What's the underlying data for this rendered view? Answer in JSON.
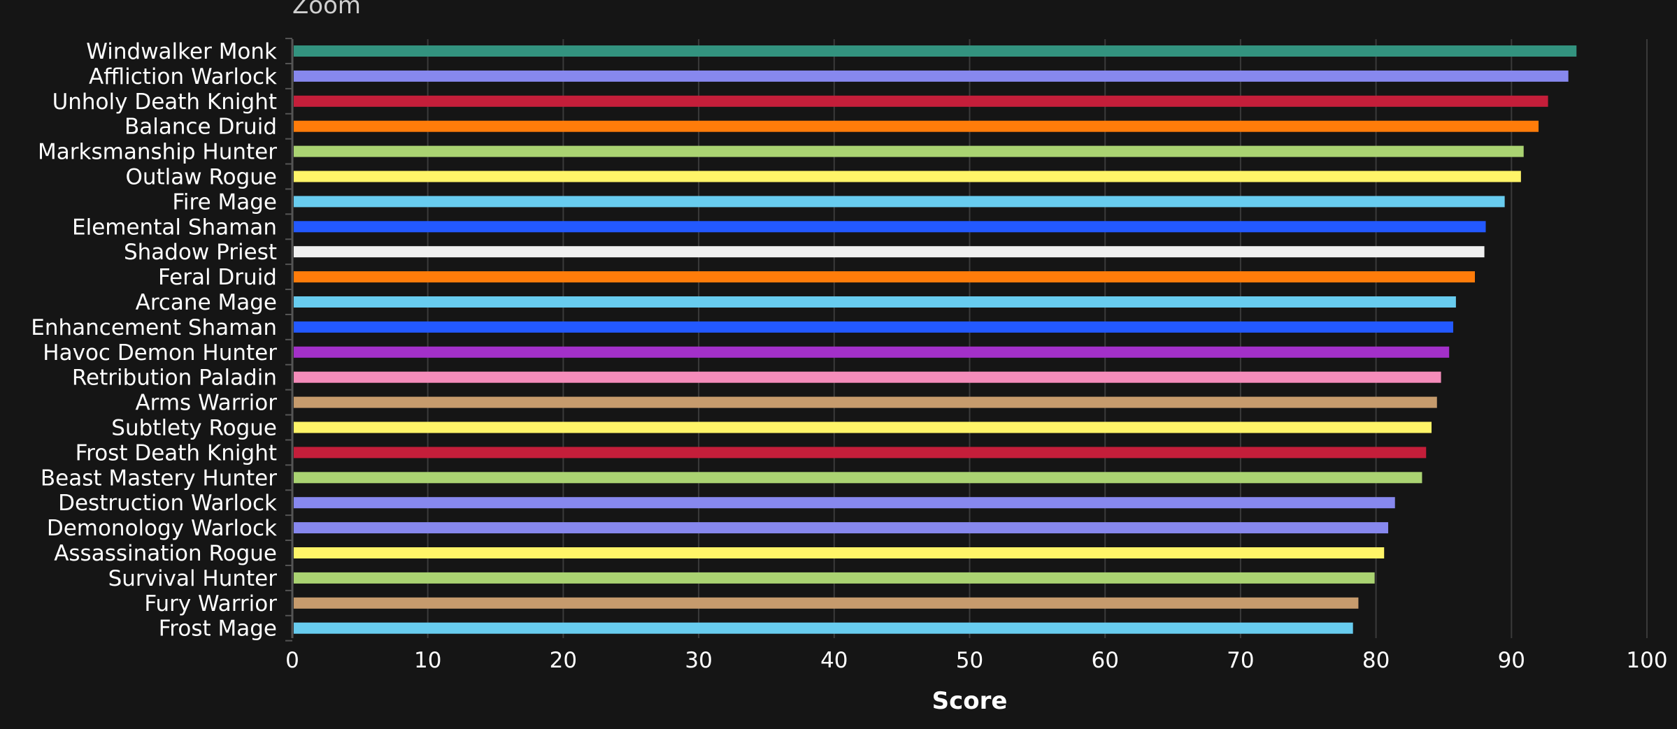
{
  "zoom_label": "Zoom",
  "chart_data": {
    "type": "bar",
    "orientation": "horizontal",
    "title": "",
    "xlabel": "Score",
    "ylabel": "",
    "xlim": [
      0,
      100
    ],
    "x_ticks": [
      0,
      10,
      20,
      30,
      40,
      50,
      60,
      70,
      80,
      90,
      100
    ],
    "grid": "vertical",
    "legend": "none",
    "background": "#151515",
    "categories": [
      "Windwalker Monk",
      "Affliction Warlock",
      "Unholy Death Knight",
      "Balance Druid",
      "Marksmanship Hunter",
      "Outlaw Rogue",
      "Fire Mage",
      "Elemental Shaman",
      "Shadow Priest",
      "Feral Druid",
      "Arcane Mage",
      "Enhancement Shaman",
      "Havoc Demon Hunter",
      "Retribution Paladin",
      "Arms Warrior",
      "Subtlety Rogue",
      "Frost Death Knight",
      "Beast Mastery Hunter",
      "Destruction Warlock",
      "Demonology Warlock",
      "Assassination Rogue",
      "Survival Hunter",
      "Fury Warrior",
      "Frost Mage"
    ],
    "values": [
      94.8,
      94.2,
      92.7,
      92.0,
      90.9,
      90.7,
      89.5,
      88.1,
      88.0,
      87.3,
      85.9,
      85.7,
      85.4,
      84.8,
      84.5,
      84.1,
      83.7,
      83.4,
      81.4,
      80.9,
      80.6,
      79.9,
      78.7,
      78.3
    ],
    "colors": [
      "#33937F",
      "#8788EE",
      "#C41E3A",
      "#FF7C0A",
      "#AAD372",
      "#FFF468",
      "#68CCEF",
      "#2359FF",
      "#F0F0F0",
      "#FF7C0A",
      "#68CCEF",
      "#2359FF",
      "#A330C9",
      "#F48CBA",
      "#C69B6D",
      "#FFF468",
      "#C41E3A",
      "#AAD372",
      "#8788EE",
      "#8788EE",
      "#FFF468",
      "#AAD372",
      "#C69B6D",
      "#68CCEF"
    ]
  }
}
